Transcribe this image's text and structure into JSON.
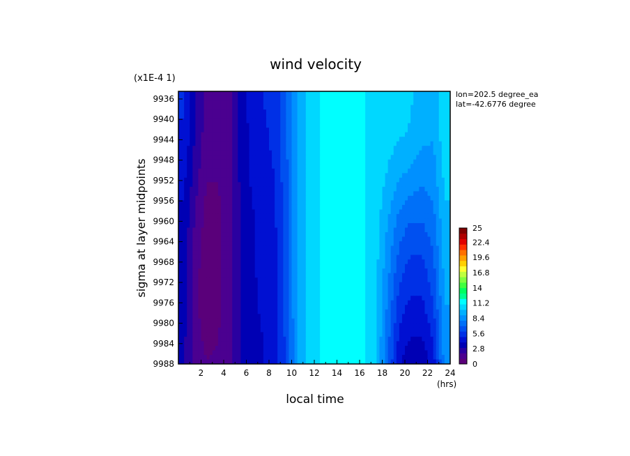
{
  "chart_data": {
    "type": "heatmap",
    "title": "wind velocity",
    "xlabel": "local time",
    "ylabel": "sigma at layer midpoints",
    "x_units": "(hrs)",
    "y_scale_label": "(x1E-4 1)",
    "info": [
      "lon=202.5 degree_ea",
      "lat=-42.6776 degree"
    ],
    "x_ticks": [
      "2",
      "4",
      "6",
      "8",
      "10",
      "12",
      "14",
      "16",
      "18",
      "20",
      "22",
      "24"
    ],
    "y_ticks": [
      "9936",
      "9940",
      "9944",
      "9948",
      "9952",
      "9956",
      "9960",
      "9964",
      "9968",
      "9972",
      "9976",
      "9980",
      "9984",
      "9988"
    ],
    "xlim": [
      0,
      24
    ],
    "ylim": [
      9934.5,
      9988
    ],
    "colorbar": {
      "range": [
        0,
        25
      ],
      "ticks": [
        "25",
        "22.4",
        "19.6",
        "16.8",
        "14",
        "11.2",
        "8.4",
        "5.6",
        "2.8",
        "0"
      ],
      "colors": [
        "#5a007a",
        "#4b0090",
        "#2a00a0",
        "#0000b4",
        "#0010d2",
        "#0030e6",
        "#0050f0",
        "#0070f8",
        "#0090ff",
        "#00b0ff",
        "#00d8ff",
        "#00ffff",
        "#00ff90",
        "#00ff60",
        "#40ff40",
        "#80ff40",
        "#c0ff40",
        "#ffff30",
        "#ffd000",
        "#ffa000",
        "#ff7000",
        "#ff3000",
        "#e00000",
        "#b00000",
        "#800000"
      ]
    },
    "x": [
      0.5,
      1.5,
      2.5,
      3.5,
      4.5,
      5.5,
      6.5,
      7.5,
      8.5,
      9.5,
      10.5,
      11.5,
      12.5,
      13.5,
      14.5,
      15.5,
      16.5,
      17.5,
      18.5,
      19.5,
      20.5,
      21.5,
      22.5,
      23.5
    ],
    "y": [
      9936,
      9944,
      9952,
      9960,
      9968,
      9976,
      9984,
      9988
    ],
    "z": [
      [
        5.2,
        3.0,
        1.8,
        1.4,
        1.8,
        3.2,
        4.6,
        5.0,
        5.4,
        6.8,
        9.2,
        10.4,
        11.0,
        11.6,
        11.6,
        11.4,
        11.0,
        10.8,
        10.8,
        10.8,
        10.2,
        9.0,
        9.0,
        10.8
      ],
      [
        4.8,
        2.8,
        1.4,
        1.2,
        1.6,
        3.2,
        4.4,
        4.8,
        5.2,
        6.8,
        9.2,
        10.4,
        11.0,
        11.6,
        11.6,
        11.4,
        11.0,
        10.8,
        10.4,
        10.0,
        9.8,
        9.2,
        9.0,
        10.6
      ],
      [
        4.2,
        2.4,
        1.0,
        1.0,
        1.6,
        3.2,
        4.2,
        4.6,
        5.0,
        6.6,
        9.0,
        10.4,
        11.0,
        11.6,
        11.6,
        11.4,
        11.0,
        10.6,
        9.8,
        9.0,
        8.6,
        8.2,
        8.4,
        10.2
      ],
      [
        3.8,
        1.8,
        0.6,
        0.8,
        1.6,
        3.0,
        3.8,
        4.4,
        4.8,
        6.6,
        9.0,
        10.4,
        11.0,
        11.6,
        11.6,
        11.4,
        11.0,
        10.4,
        9.0,
        7.6,
        7.0,
        7.0,
        7.6,
        9.8
      ],
      [
        3.6,
        1.4,
        0.4,
        0.8,
        1.6,
        3.0,
        3.8,
        4.4,
        4.6,
        6.4,
        9.0,
        10.4,
        11.0,
        11.6,
        11.6,
        11.4,
        11.0,
        10.2,
        8.4,
        6.6,
        5.8,
        5.8,
        6.8,
        9.4
      ],
      [
        3.4,
        1.2,
        0.4,
        0.8,
        1.6,
        3.0,
        3.8,
        4.2,
        4.6,
        6.4,
        9.0,
        10.4,
        11.0,
        11.6,
        11.6,
        11.4,
        11.0,
        10.0,
        7.8,
        5.6,
        4.8,
        4.8,
        6.0,
        9.0
      ],
      [
        3.2,
        1.4,
        0.8,
        1.0,
        1.6,
        3.0,
        3.6,
        4.0,
        4.4,
        6.2,
        9.0,
        10.4,
        11.0,
        11.6,
        11.6,
        11.4,
        11.0,
        10.0,
        7.2,
        4.6,
        3.8,
        3.8,
        5.0,
        8.6
      ],
      [
        3.2,
        1.6,
        1.0,
        1.2,
        1.8,
        3.0,
        3.6,
        4.0,
        4.4,
        6.2,
        9.0,
        10.4,
        11.0,
        11.6,
        11.6,
        11.4,
        11.0,
        10.0,
        7.0,
        4.2,
        3.2,
        3.2,
        4.4,
        8.4
      ]
    ]
  }
}
